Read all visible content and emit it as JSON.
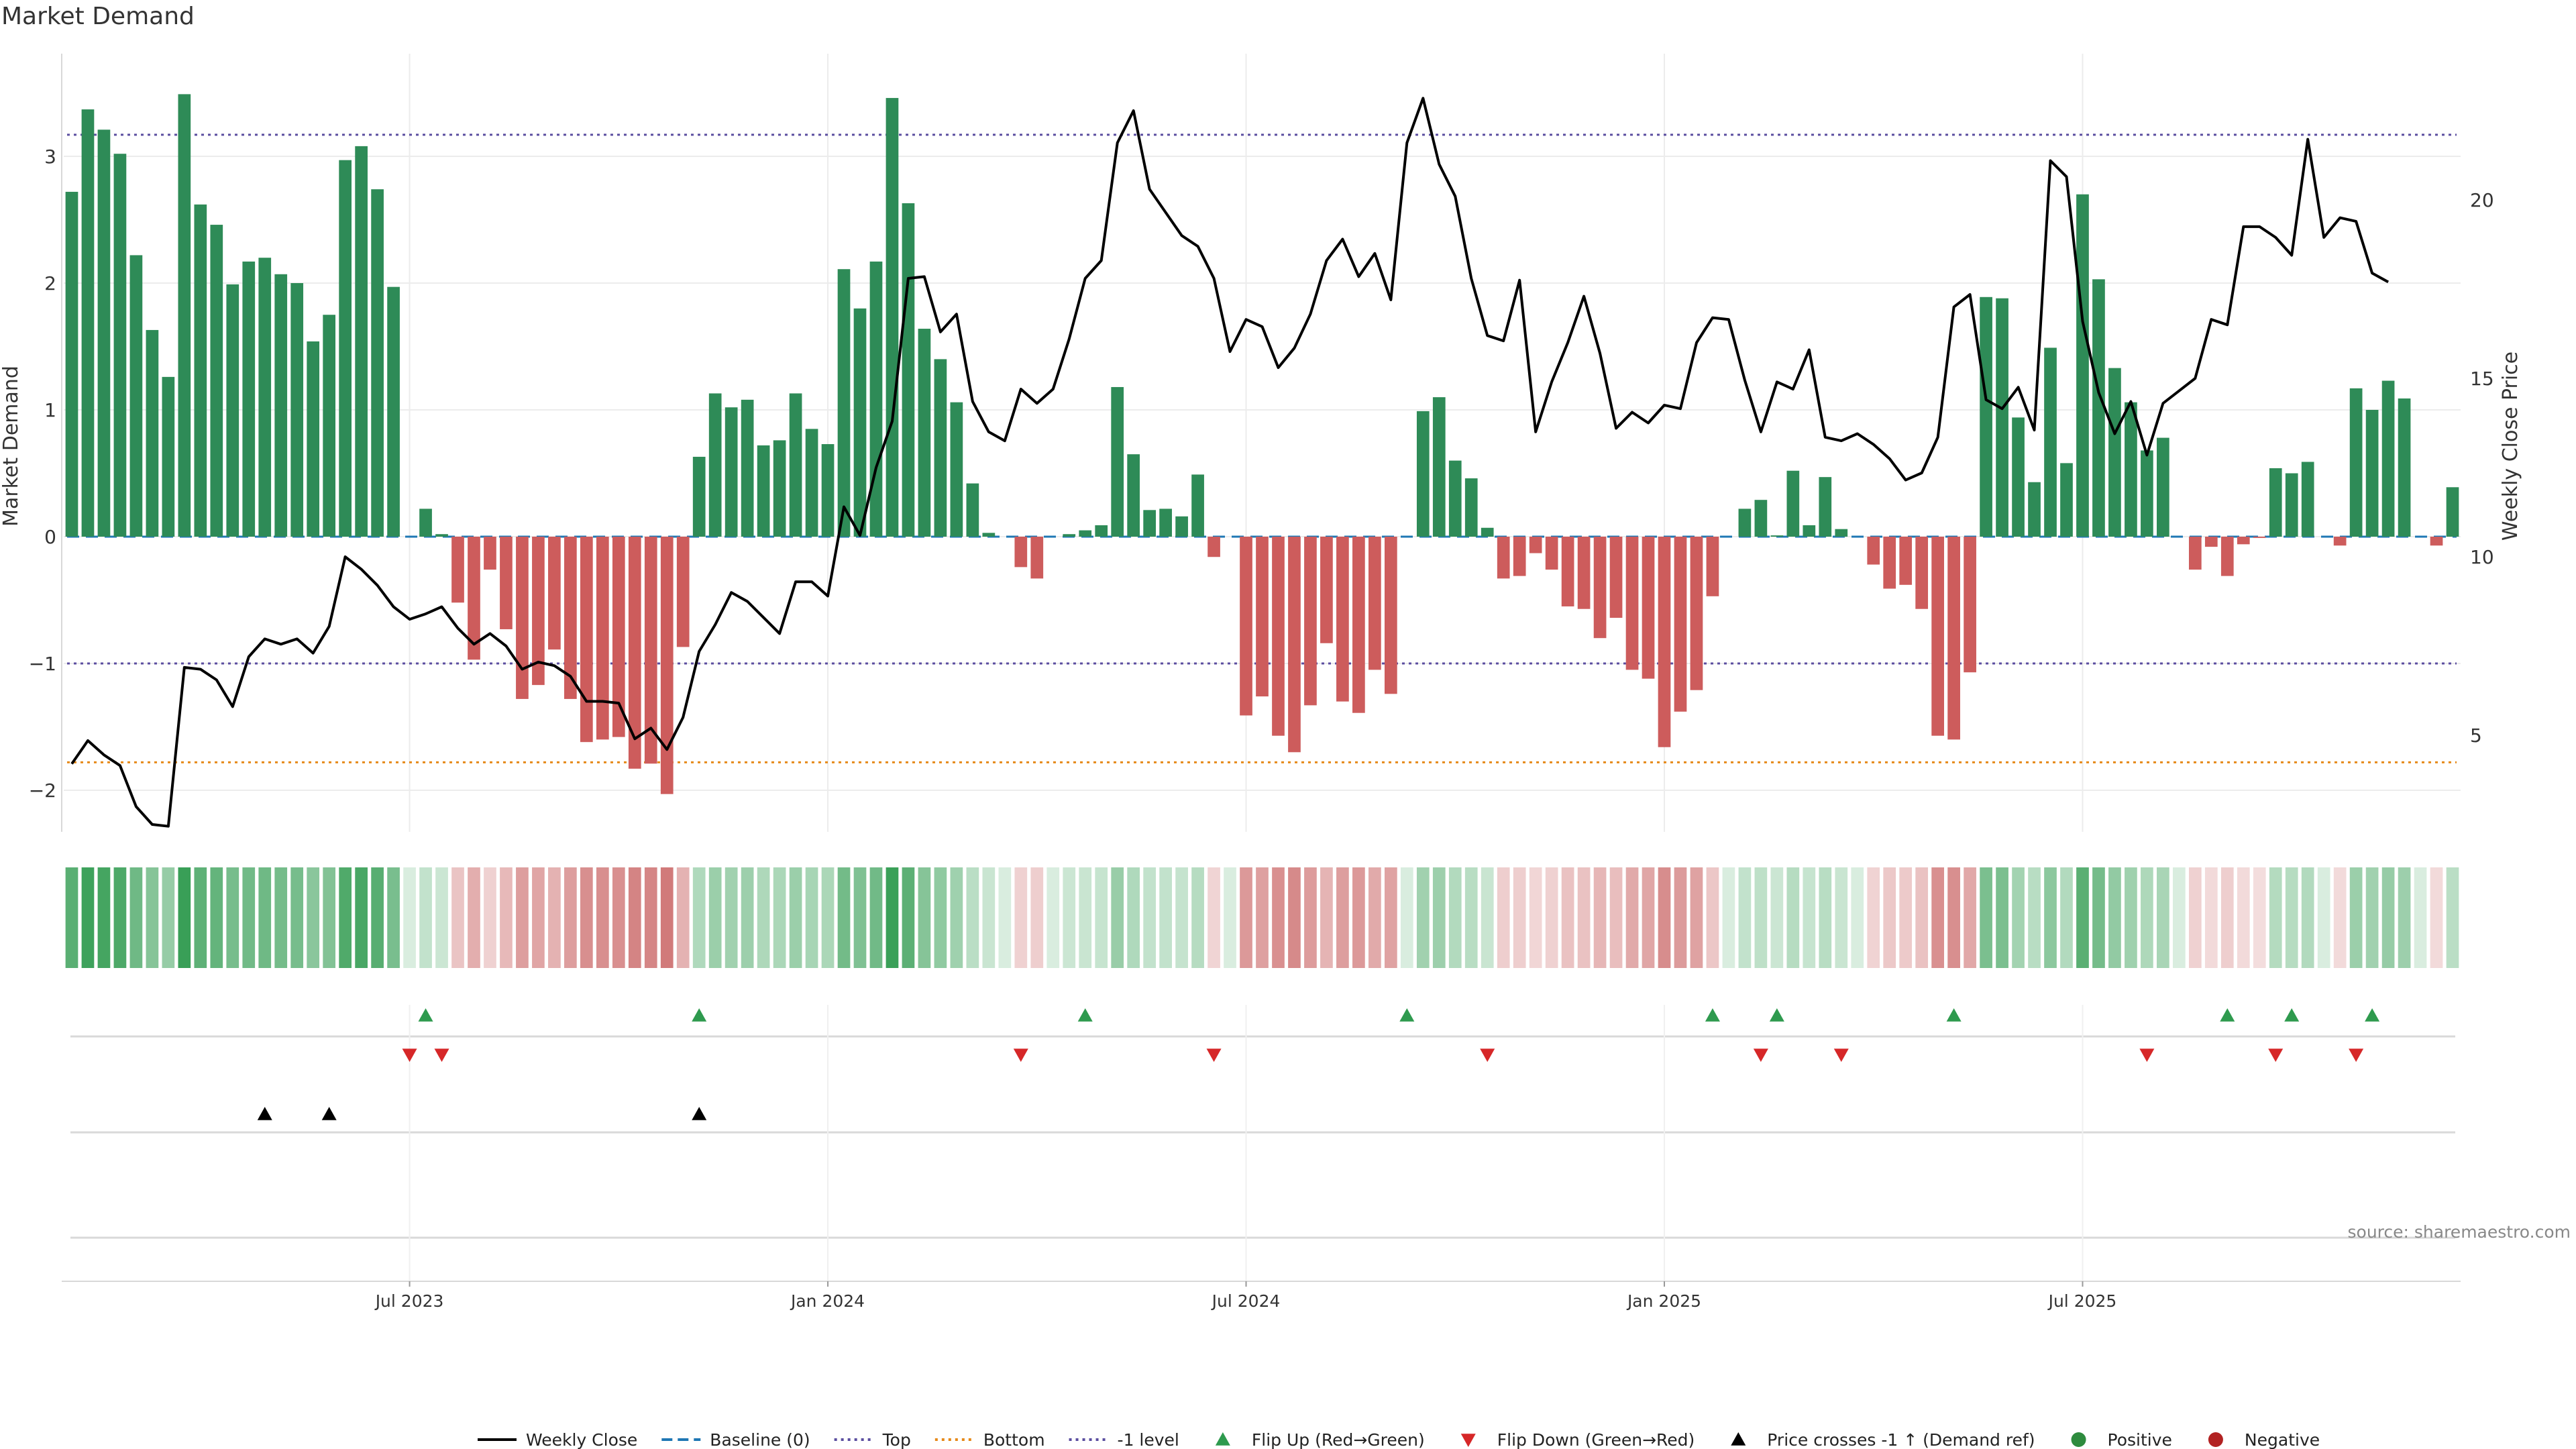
{
  "chart_data": {
    "type": "bar",
    "title": "Market Demand",
    "ylabel": "Market Demand",
    "y2label": "Weekly Close Price",
    "ylim": [
      -2.35,
      3.8
    ],
    "y2lim": [
      2.0,
      24.0
    ],
    "yticks": [
      -2,
      -1,
      0,
      1,
      2,
      3
    ],
    "y2ticks": [
      5,
      10,
      15,
      20
    ],
    "reference_lines": {
      "top": 3.17,
      "bottom": -1.78,
      "minus_one": -1.0,
      "baseline": 0
    },
    "x_tick_labels": [
      {
        "index": 21,
        "label": "Jul 2023"
      },
      {
        "index": 47,
        "label": "Jan 2024"
      },
      {
        "index": 73,
        "label": "Jul 2024"
      },
      {
        "index": 99,
        "label": "Jan 2025"
      },
      {
        "index": 125,
        "label": "Jul 2025"
      }
    ],
    "demand": [
      2.72,
      3.37,
      3.21,
      3.02,
      2.22,
      1.63,
      1.26,
      3.49,
      2.62,
      2.46,
      1.99,
      2.17,
      2.2,
      2.07,
      2.0,
      1.54,
      1.75,
      2.97,
      3.08,
      2.74,
      1.97,
      0.0,
      0.22,
      0.02,
      -0.52,
      -0.97,
      -0.26,
      -0.73,
      -1.28,
      -1.17,
      -0.89,
      -1.28,
      -1.62,
      -1.6,
      -1.58,
      -1.83,
      -1.79,
      -2.03,
      -0.87,
      0.63,
      1.13,
      1.02,
      1.08,
      0.72,
      0.76,
      1.13,
      0.85,
      0.73,
      2.11,
      1.8,
      2.17,
      3.46,
      2.63,
      1.64,
      1.4,
      1.06,
      0.42,
      0.03,
      0.0,
      -0.24,
      -0.33,
      0.0,
      0.02,
      0.05,
      0.09,
      1.18,
      0.65,
      0.21,
      0.22,
      0.16,
      0.49,
      -0.16,
      0.0,
      -1.41,
      -1.26,
      -1.57,
      -1.7,
      -1.33,
      -0.84,
      -1.3,
      -1.39,
      -1.05,
      -1.24,
      0.0,
      0.99,
      1.1,
      0.6,
      0.46,
      0.07,
      -0.33,
      -0.31,
      -0.13,
      -0.26,
      -0.55,
      -0.57,
      -0.8,
      -0.64,
      -1.05,
      -1.12,
      -1.66,
      -1.38,
      -1.21,
      -0.47,
      0.0,
      0.22,
      0.29,
      0.01,
      0.52,
      0.09,
      0.47,
      0.06,
      0.0,
      -0.22,
      -0.41,
      -0.38,
      -0.57,
      -1.57,
      -1.6,
      -1.07,
      1.89,
      1.88,
      0.94,
      0.43,
      1.49,
      0.58,
      2.7,
      2.03,
      1.33,
      1.06,
      0.68,
      0.78,
      0.0,
      -0.26,
      -0.08,
      -0.31,
      -0.06,
      -0.01,
      0.54,
      0.5,
      0.59,
      0.0,
      -0.07,
      1.17,
      1.0,
      1.23,
      1.09,
      0.0,
      -0.07,
      0.39
    ],
    "price": [
      4.2,
      4.85,
      4.45,
      4.15,
      3.0,
      2.5,
      2.45,
      6.9,
      6.85,
      6.55,
      5.8,
      7.2,
      7.7,
      7.55,
      7.7,
      7.3,
      8.05,
      10.0,
      9.65,
      9.2,
      8.6,
      8.25,
      8.4,
      8.6,
      8.0,
      7.55,
      7.85,
      7.5,
      6.85,
      7.05,
      6.95,
      6.65,
      5.95,
      5.95,
      5.9,
      4.9,
      5.2,
      4.6,
      5.5,
      7.35,
      8.1,
      9.0,
      8.75,
      8.3,
      7.85,
      9.3,
      9.3,
      8.9,
      11.4,
      10.6,
      12.5,
      13.8,
      17.8,
      17.85,
      16.3,
      16.8,
      14.35,
      13.5,
      13.25,
      14.7,
      14.3,
      14.7,
      16.1,
      17.8,
      18.3,
      21.6,
      22.5,
      20.3,
      19.65,
      19.0,
      18.7,
      17.8,
      15.75,
      16.65,
      16.45,
      15.3,
      15.85,
      16.8,
      18.3,
      18.9,
      17.85,
      18.5,
      17.2,
      21.6,
      22.85,
      21.0,
      20.1,
      17.8,
      16.2,
      16.05,
      17.75,
      13.5,
      14.9,
      16.0,
      17.3,
      15.7,
      13.6,
      14.05,
      13.75,
      14.25,
      14.15,
      16.0,
      16.7,
      16.65,
      14.95,
      13.5,
      14.9,
      14.7,
      15.8,
      13.35,
      13.25,
      13.45,
      13.15,
      12.75,
      12.15,
      12.35,
      13.35,
      17.0,
      17.35,
      14.4,
      14.15,
      14.75,
      13.55,
      21.1,
      20.65,
      16.6,
      14.6,
      13.45,
      14.35,
      12.85,
      14.3,
      14.65,
      15.0,
      16.65,
      16.5,
      19.25,
      19.25,
      18.95,
      18.45,
      21.7,
      18.95,
      19.5,
      19.4,
      17.95,
      17.7
    ],
    "flip_up": [
      22,
      39,
      63,
      83,
      102,
      106,
      117,
      134,
      138,
      143
    ],
    "flip_down": [
      21,
      23,
      59,
      71,
      88,
      105,
      110,
      129,
      137,
      142
    ],
    "price_cross": [
      12,
      16,
      39
    ],
    "series": [
      {
        "name": "Market Demand",
        "kind": "bar"
      },
      {
        "name": "Weekly Close",
        "kind": "line",
        "axis": "right"
      }
    ],
    "legend_position": "bottom-center",
    "legend": [
      {
        "label": "Weekly Close",
        "marker": "line-solid",
        "color": "#000000"
      },
      {
        "label": "Baseline (0)",
        "marker": "line-dashed",
        "color": "#1f77b4"
      },
      {
        "label": "Top",
        "marker": "line-dotted",
        "color": "#5b4ea0"
      },
      {
        "label": "Bottom",
        "marker": "line-dotted",
        "color": "#e68a1a"
      },
      {
        "label": "-1 level",
        "marker": "line-dotted",
        "color": "#5b4ea0"
      },
      {
        "label": "Flip Up (Red→Green)",
        "marker": "triangle-up",
        "color": "#2e9a4e"
      },
      {
        "label": "Flip Down (Green→Red)",
        "marker": "triangle-down",
        "color": "#d62728"
      },
      {
        "label": "Price crosses -1 ↑ (Demand ref)",
        "marker": "triangle-up",
        "color": "#000000"
      },
      {
        "label": "Positive",
        "marker": "circle",
        "color": "#2e8b3e"
      },
      {
        "label": "Negative",
        "marker": "circle",
        "color": "#b22222"
      }
    ],
    "source": "source: sharemaestro.com"
  },
  "colors": {
    "positive_bar": "#2e8b57",
    "negative_bar": "#cd5c5c",
    "price_line": "#000000",
    "baseline": "#1f77b4",
    "top_line": "#5b4ea0",
    "bottom_line": "#e68a1a",
    "minus_one_line": "#5b4ea0",
    "flip_up": "#2e9a4e",
    "flip_down": "#d62728",
    "cross": "#000000",
    "grid": "#ececec"
  }
}
